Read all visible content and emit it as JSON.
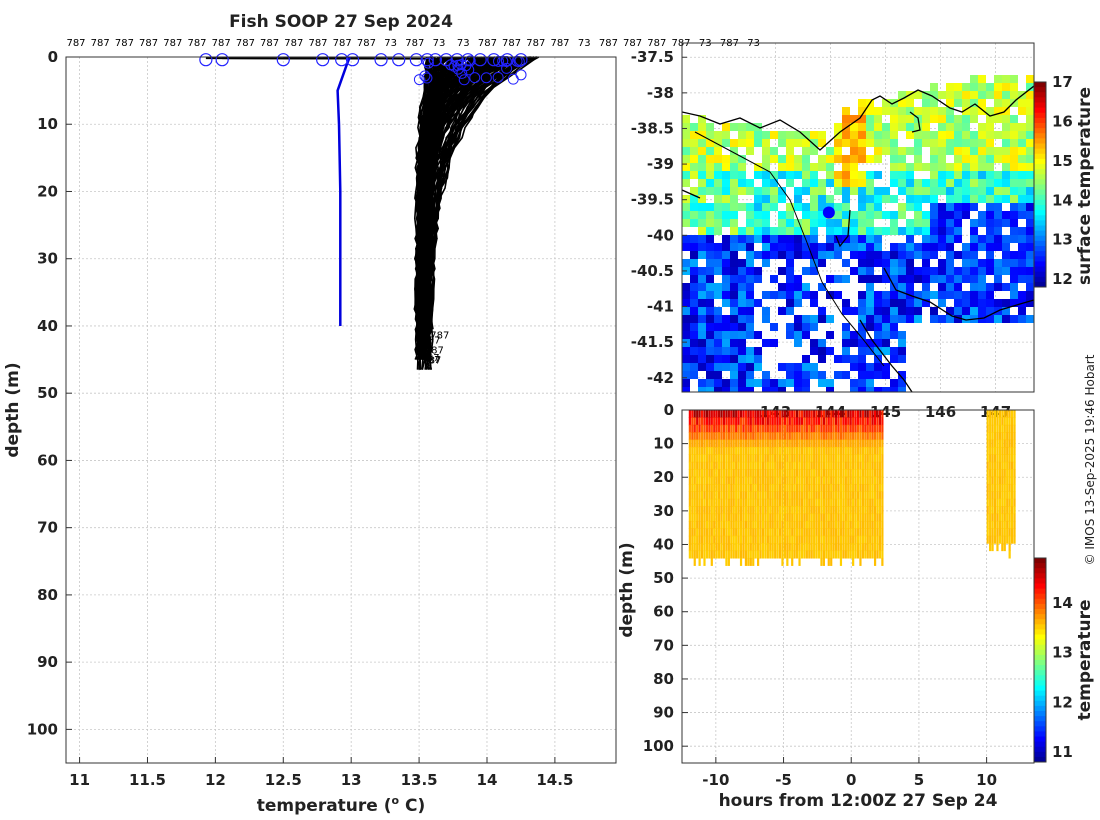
{
  "chart_data": [
    {
      "type": "line",
      "title": "Fish SOOP 27 Sep 2024",
      "xlabel": "temperature (° C)",
      "xlabel_main": "temperature (",
      "xlabel_sup": "o",
      "xlabel_tail": " C)",
      "ylabel": "depth (m)",
      "xlim": [
        10.9,
        14.95
      ],
      "ylim": [
        105,
        0
      ],
      "xticks": [
        "11",
        "11.5",
        "12",
        "12.5",
        "13",
        "13.5",
        "14",
        "14.5"
      ],
      "yticks": [
        "0",
        "10",
        "20",
        "30",
        "40",
        "50",
        "60",
        "70",
        "80",
        "90",
        "100"
      ],
      "grid": true,
      "top_labels": [
        "787",
        "787",
        "787",
        "787",
        "787",
        "787",
        "787",
        "787",
        "787",
        "787",
        "787",
        "787",
        "787",
        "73",
        "787",
        "73",
        "73",
        "787",
        "787",
        "787",
        "787",
        "73",
        "787",
        "787",
        "787",
        "787",
        "73",
        "787",
        "73"
      ],
      "highlight_series": {
        "name": "",
        "color": "#0000dd",
        "depth": [
          0,
          1,
          5,
          10,
          20,
          30,
          40
        ],
        "temperature": [
          12.99,
          12.97,
          12.9,
          12.91,
          12.92,
          12.92,
          12.92
        ]
      },
      "surface_markers": [
        11.93,
        12.05,
        12.5,
        12.79,
        12.93,
        13.01,
        13.22,
        13.35,
        13.48,
        13.56,
        13.62,
        13.7,
        13.78,
        13.86,
        13.95,
        14.05,
        14.15,
        14.25
      ],
      "profiles_color": "#000000",
      "profiles_bottom": "787"
    },
    {
      "type": "heatmap",
      "colorbar_label": "surface temperature",
      "colorbar_ticks": [
        "12",
        "13",
        "14",
        "15",
        "16",
        "17"
      ],
      "clim": [
        11.8,
        17
      ],
      "yticks": [
        "-37.5",
        "-38",
        "-38.5",
        "-39",
        "-39.5",
        "-40",
        "-40.5",
        "-41",
        "-41.5",
        "-42"
      ],
      "xticks": [
        "143",
        "144",
        "145",
        "146",
        "147"
      ],
      "lat_range": [
        -42.2,
        -37.3
      ],
      "lon_range": [
        141.3,
        147.7
      ],
      "marker": {
        "lon": 143.97,
        "lat": -39.68,
        "color": "#0000ff"
      }
    },
    {
      "type": "heatmap",
      "xlabel": "hours from 12:00Z 27 Sep 24",
      "ylabel": "depth (m)",
      "colorbar_label": "temperature",
      "colorbar_ticks": [
        "11",
        "12",
        "13",
        "14"
      ],
      "clim": [
        10.8,
        14.9
      ],
      "xticks": [
        "-10",
        "-5",
        "0",
        "5",
        "10"
      ],
      "yticks": [
        "0",
        "10",
        "20",
        "30",
        "40",
        "50",
        "60",
        "70",
        "80",
        "90",
        "100"
      ],
      "xlim": [
        -12.5,
        13.5
      ],
      "ylim": [
        105,
        0
      ],
      "blocks": [
        {
          "x_from": -12,
          "x_to": 2.3,
          "max_depth": 45
        },
        {
          "x_from": 10,
          "x_to": 12.1,
          "max_depth": 42
        }
      ]
    }
  ],
  "credit": "© IMOS 13-Sep-2025 19:46 Hobart"
}
